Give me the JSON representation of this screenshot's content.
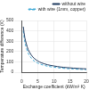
{
  "chart_data": {
    "type": "line",
    "x_label": "Exchange coefficient (kW/m² K)",
    "y_label": "Temperature difference (K)",
    "x": [
      0.5,
      1,
      2,
      3,
      4,
      5,
      6,
      8,
      10,
      12,
      14,
      16,
      18,
      20
    ],
    "series": [
      {
        "name": "without wire",
        "color": "#1f3a5f",
        "line_style": "solid",
        "values": [
          440,
          330,
          220,
          165,
          130,
          108,
          92,
          72,
          60,
          50,
          44,
          39,
          35,
          32
        ]
      },
      {
        "name": "with wire (1mm, copper)",
        "color": "#3fa9d6",
        "line_style": "dashed",
        "values": [
          400,
          290,
          185,
          135,
          105,
          88,
          75,
          58,
          48,
          40,
          35,
          31,
          28,
          25
        ]
      }
    ],
    "xlim": [
      0,
      20
    ],
    "xticks": [
      0,
      5,
      10,
      15,
      20
    ],
    "ylim": [
      0,
      500
    ],
    "yticks": [
      0,
      100,
      200,
      300,
      400,
      500
    ],
    "grid": true,
    "legend": "top-right"
  }
}
